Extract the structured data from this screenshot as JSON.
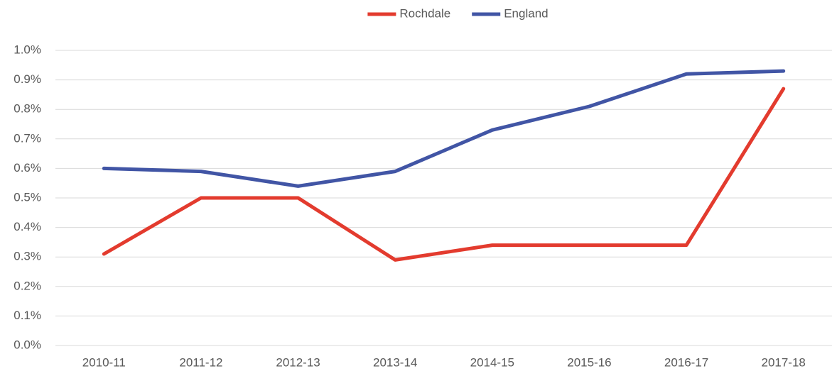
{
  "chart_data": {
    "type": "line",
    "categories": [
      "2010-11",
      "2011-12",
      "2012-13",
      "2013-14",
      "2014-15",
      "2015-16",
      "2016-17",
      "2017-18"
    ],
    "series": [
      {
        "name": "Rochdale",
        "color": "#e33b2e",
        "values": [
          0.31,
          0.5,
          0.5,
          0.29,
          0.34,
          0.34,
          0.34,
          0.87
        ]
      },
      {
        "name": "England",
        "color": "#4155a5",
        "values": [
          0.6,
          0.59,
          0.54,
          0.59,
          0.73,
          0.81,
          0.92,
          0.93
        ]
      }
    ],
    "ylim": [
      0,
      1.0
    ],
    "yticks": [
      {
        "value": 0,
        "label": "0.0%"
      },
      {
        "value": 0.1,
        "label": "0.1%"
      },
      {
        "value": 0.2,
        "label": "0.2%"
      },
      {
        "value": 0.3,
        "label": "0.3%"
      },
      {
        "value": 0.4,
        "label": "0.4%"
      },
      {
        "value": 0.5,
        "label": "0.5%"
      },
      {
        "value": 0.6,
        "label": "0.6%"
      },
      {
        "value": 0.7,
        "label": "0.7%"
      },
      {
        "value": 0.8,
        "label": "0.8%"
      },
      {
        "value": 0.9,
        "label": "0.9%"
      },
      {
        "value": 1.0,
        "label": "1.0%"
      }
    ],
    "grid": true,
    "legend": "top"
  }
}
